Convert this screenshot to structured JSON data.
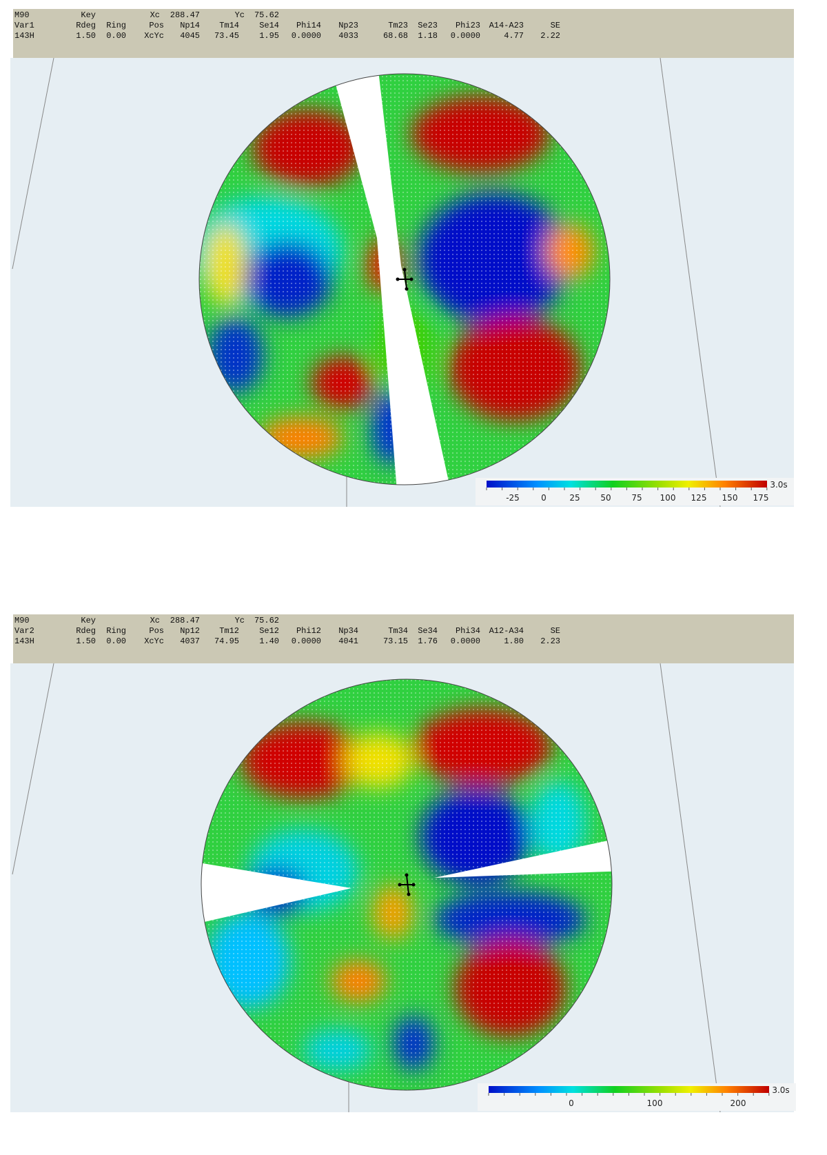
{
  "panels": [
    {
      "header": {
        "rows": [
          [
            "M90",
            "Key",
            "Xc",
            "288.47",
            "Yc",
            "75.62"
          ],
          [
            "Var1",
            "Rdeg",
            "Ring",
            "Pos",
            "Np14",
            "Tm14",
            "Se14",
            "Phi14",
            "Np23",
            "Tm23",
            "Se23",
            "Phi23",
            "A14-A23",
            "SE"
          ],
          [
            "143H",
            "1.50",
            "0.00",
            "XcYc",
            "4045",
            "73.45",
            "1.95",
            "0.0000",
            "4033",
            "68.68",
            "1.18",
            "0.0000",
            "4.77",
            "2.22"
          ]
        ]
      },
      "colorbar": {
        "ticks": [
          -25,
          0,
          25,
          50,
          75,
          100,
          125,
          150,
          175
        ],
        "unit": "3.0s"
      }
    },
    {
      "header": {
        "rows": [
          [
            "M90",
            "Key",
            "Xc",
            "288.47",
            "Yc",
            "75.62"
          ],
          [
            "Var2",
            "Rdeg",
            "Ring",
            "Pos",
            "Np12",
            "Tm12",
            "Se12",
            "Phi12",
            "Np34",
            "Tm34",
            "Se34",
            "Phi34",
            "A12-A34",
            "SE"
          ],
          [
            "143H",
            "1.50",
            "0.00",
            "XcYc",
            "4037",
            "74.95",
            "1.40",
            "0.0000",
            "4041",
            "73.15",
            "1.76",
            "0.0000",
            "1.80",
            "2.23"
          ]
        ]
      },
      "colorbar": {
        "ticks": [
          0,
          100,
          200
        ],
        "unit": "3.0s"
      }
    }
  ]
}
